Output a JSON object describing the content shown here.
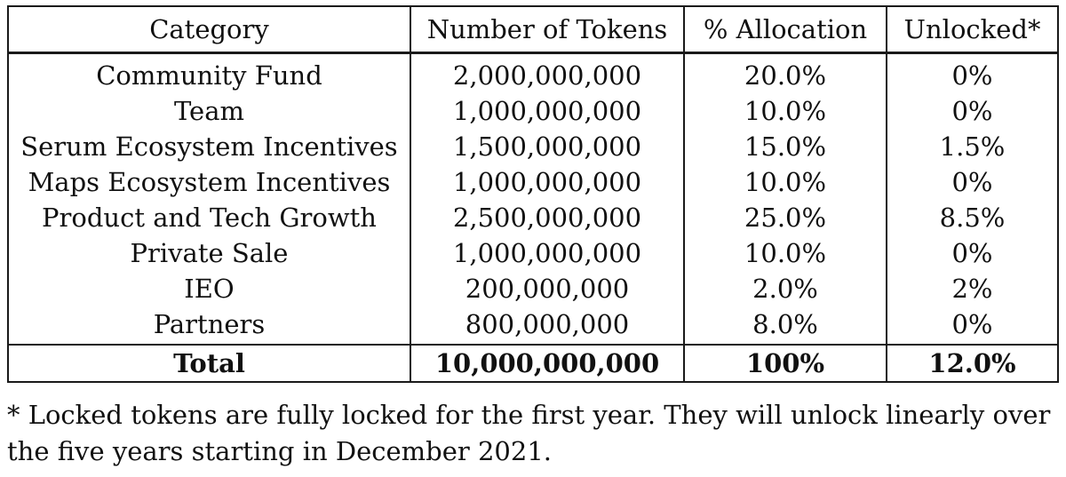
{
  "table": {
    "headers": [
      "Category",
      "Number of Tokens",
      "% Allocation",
      "Unlocked*"
    ],
    "rows": [
      [
        "Community Fund",
        "2,000,000,000",
        "20.0%",
        "0%"
      ],
      [
        "Team",
        "1,000,000,000",
        "10.0%",
        "0%"
      ],
      [
        "Serum Ecosystem Incentives",
        "1,500,000,000",
        "15.0%",
        "1.5%"
      ],
      [
        "Maps Ecosystem Incentives",
        "1,000,000,000",
        "10.0%",
        "0%"
      ],
      [
        "Product and Tech Growth",
        "2,500,000,000",
        "25.0%",
        "8.5%"
      ],
      [
        "Private Sale",
        "1,000,000,000",
        "10.0%",
        "0%"
      ],
      [
        "IEO",
        "200,000,000",
        "2.0%",
        "2%"
      ],
      [
        "Partners",
        "800,000,000",
        "8.0%",
        "0%"
      ]
    ],
    "total": [
      "Total",
      "10,000,000,000",
      "100%",
      "12.0%"
    ]
  },
  "footnote": "* Locked tokens are fully locked for the first year. They will unlock linearly over the five years starting in December 2021."
}
